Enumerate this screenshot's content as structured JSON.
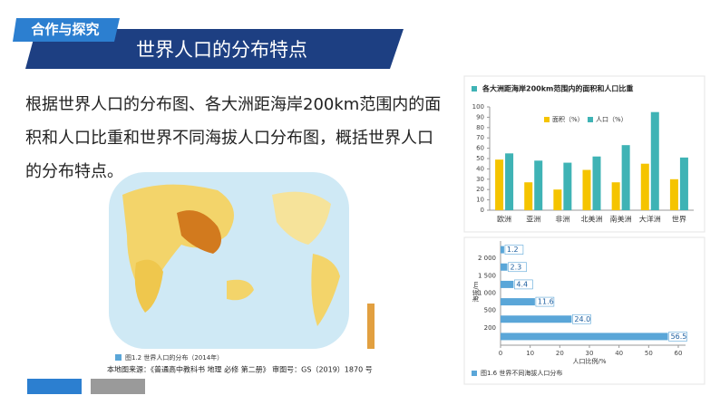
{
  "header": {
    "badge": "合作与探究",
    "title": "世界人口的分布特点"
  },
  "body": {
    "text": "根据世界人口的分布图、各大洲距海岸200km范围内的面积和人口比重和世界不同海拔人口分布图，概括世界人口的分布特点。"
  },
  "map": {
    "caption": "图1.2  世界人口的分布（2014年）",
    "source": "本地图来源：《普通高中教科书 地理 必修 第二册》 审图号：GS（2019）1870 号"
  },
  "chart_data": [
    {
      "type": "bar",
      "title": "各大洲距海岸200km范围内的面积和人口比重",
      "categories": [
        "欧洲",
        "亚洲",
        "非洲",
        "北美洲",
        "南美洲",
        "大洋洲",
        "世界"
      ],
      "series": [
        {
          "name": "面积（%）",
          "color": "#f5c400",
          "values": [
            49,
            27,
            20,
            39,
            27,
            45,
            30
          ]
        },
        {
          "name": "人口（%）",
          "color": "#3fb3b5",
          "values": [
            55,
            48,
            46,
            52,
            63,
            95,
            51
          ]
        }
      ],
      "ylim": [
        0,
        100
      ],
      "yticks": [
        0,
        10,
        20,
        30,
        40,
        50,
        60,
        70,
        80,
        90,
        100
      ]
    },
    {
      "type": "hbar",
      "title": "图1.6  世界不同海拔人口分布",
      "y_label": "海拔/m",
      "x_label": "人口比例/%",
      "categories": [
        "2 000",
        "1 500",
        "1 000",
        "500",
        "200",
        null
      ],
      "values": [
        1.2,
        2.3,
        4.4,
        11.6,
        24,
        56.5
      ],
      "value_labels": [
        "1.2",
        "2.3",
        "4.4",
        "11.6",
        "24.0",
        "56.5"
      ],
      "color": "#5aa6d8",
      "xlim": [
        0,
        60
      ],
      "xticks": [
        0,
        10,
        20,
        30,
        40,
        50,
        60
      ]
    }
  ]
}
